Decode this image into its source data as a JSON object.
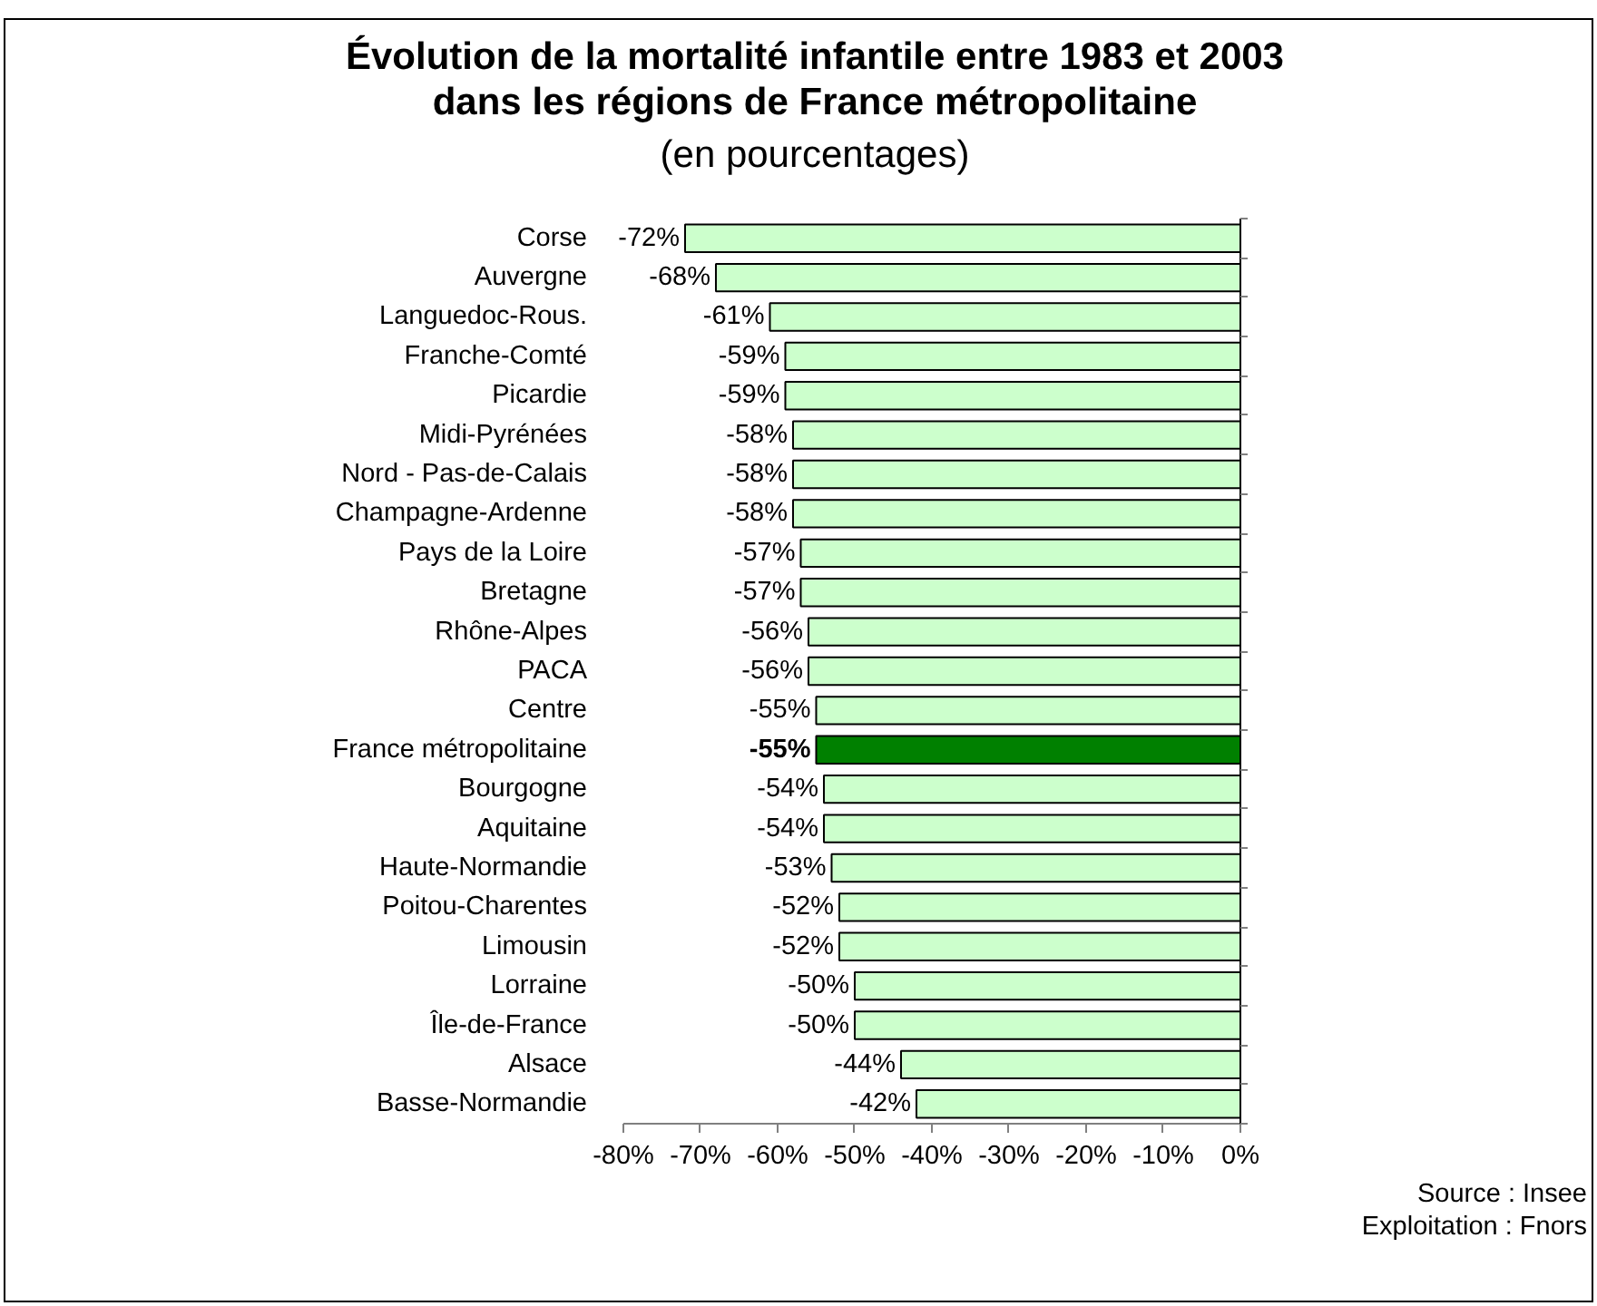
{
  "chart_data": {
    "type": "bar",
    "orientation": "horizontal",
    "title": "Évolution de la mortalité infantile entre 1983 et 2003\ndans les régions de France métropolitaine",
    "subtitle": "(en pourcentages)",
    "categories": [
      "Corse",
      "Auvergne",
      "Languedoc-Rous.",
      "Franche-Comté",
      "Picardie",
      "Midi-Pyrénées",
      "Nord - Pas-de-Calais",
      "Champagne-Ardenne",
      "Pays de la Loire",
      "Bretagne",
      "Rhône-Alpes",
      "PACA",
      "Centre",
      "France métropolitaine",
      "Bourgogne",
      "Aquitaine",
      "Haute-Normandie",
      "Poitou-Charentes",
      "Limousin",
      "Lorraine",
      "Île-de-France",
      "Alsace",
      "Basse-Normandie"
    ],
    "values": [
      -72,
      -68,
      -61,
      -59,
      -59,
      -58,
      -58,
      -58,
      -57,
      -57,
      -56,
      -56,
      -55,
      -55,
      -54,
      -54,
      -53,
      -52,
      -52,
      -50,
      -50,
      -44,
      -42
    ],
    "value_labels": [
      "-72%",
      "-68%",
      "-61%",
      "-59%",
      "-59%",
      "-58%",
      "-58%",
      "-58%",
      "-57%",
      "-57%",
      "-56%",
      "-56%",
      "-55%",
      "-55%",
      "-54%",
      "-54%",
      "-53%",
      "-52%",
      "-52%",
      "-50%",
      "-50%",
      "-44%",
      "-42%"
    ],
    "colors": [
      "#ccffcc",
      "#ccffcc",
      "#ccffcc",
      "#ccffcc",
      "#ccffcc",
      "#ccffcc",
      "#ccffcc",
      "#ccffcc",
      "#ccffcc",
      "#ccffcc",
      "#ccffcc",
      "#ccffcc",
      "#ccffcc",
      "#008000",
      "#ccffcc",
      "#ccffcc",
      "#ccffcc",
      "#ccffcc",
      "#ccffcc",
      "#ccffcc",
      "#ccffcc",
      "#ccffcc",
      "#ccffcc"
    ],
    "xlim": [
      -80,
      0
    ],
    "xticks": [
      {
        "value": -80,
        "label": "-80%"
      },
      {
        "value": -70,
        "label": "-70%"
      },
      {
        "value": -60,
        "label": "-60%"
      },
      {
        "value": -50,
        "label": "-50%"
      },
      {
        "value": -40,
        "label": "-40%"
      },
      {
        "value": -30,
        "label": "-30%"
      },
      {
        "value": -20,
        "label": "-20%"
      },
      {
        "value": -10,
        "label": "-10%"
      },
      {
        "value": 0,
        "label": "0%"
      }
    ],
    "annotations": [
      "Source : Insee",
      "Exploitation : Fnors"
    ]
  }
}
